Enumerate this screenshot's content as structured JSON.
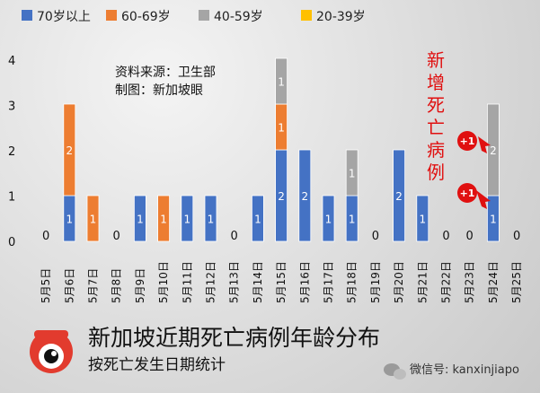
{
  "chart_data": {
    "type": "bar",
    "stacked": true,
    "title": "新加坡近期死亡病例年龄分布",
    "subtitle": "按死亡发生日期统计",
    "source_lines": [
      "资料来源：卫生部",
      "制图：新加坡眼"
    ],
    "categories": [
      "5月5日",
      "5月6日",
      "5月7日",
      "5月8日",
      "5月9日",
      "5月10日",
      "5月11日",
      "5月12日",
      "5月13日",
      "5月14日",
      "5月15日",
      "5月16日",
      "5月17日",
      "5月18日",
      "5月19日",
      "5月20日",
      "5月21日",
      "5月22日",
      "5月23日",
      "5月24日",
      "5月25日"
    ],
    "series": [
      {
        "name": "70岁以上",
        "color": "#4472C4",
        "values": [
          0,
          1,
          0,
          0,
          1,
          0,
          1,
          1,
          0,
          1,
          2,
          2,
          1,
          1,
          0,
          2,
          1,
          0,
          0,
          1,
          0
        ]
      },
      {
        "name": "60-69岁",
        "color": "#ED7D31",
        "values": [
          0,
          2,
          1,
          0,
          0,
          1,
          0,
          0,
          0,
          0,
          1,
          0,
          0,
          0,
          0,
          0,
          0,
          0,
          0,
          0,
          0
        ]
      },
      {
        "name": "40-59岁",
        "color": "#A5A5A5",
        "values": [
          0,
          0,
          0,
          0,
          0,
          0,
          0,
          0,
          0,
          0,
          1,
          0,
          0,
          1,
          0,
          0,
          0,
          0,
          0,
          2,
          0
        ]
      },
      {
        "name": "20-39岁",
        "color": "#FFC000",
        "values": [
          0,
          0,
          0,
          0,
          0,
          0,
          0,
          0,
          0,
          0,
          0,
          0,
          0,
          0,
          0,
          0,
          0,
          0,
          0,
          0,
          0
        ]
      }
    ],
    "zero_label": "0",
    "ylim": [
      0,
      4
    ],
    "y_ticks": [
      "0",
      "1",
      "2",
      "3",
      "4"
    ],
    "legend_position": "top",
    "annotation": {
      "text": "新增死亡病例",
      "color": "#e01010"
    },
    "plus_marks": [
      "+1",
      "+1"
    ],
    "watermark": "微信号: kanxinjiapo"
  }
}
